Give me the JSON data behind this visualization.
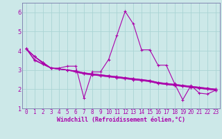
{
  "xlabel": "Windchill (Refroidissement éolien,°C)",
  "background_color": "#cce8e8",
  "grid_color": "#aad4d4",
  "line_color": "#aa00aa",
  "xlim": [
    -0.5,
    23.5
  ],
  "ylim": [
    1,
    6.5
  ],
  "yticks": [
    1,
    2,
    3,
    4,
    5,
    6
  ],
  "xticks": [
    0,
    1,
    2,
    3,
    4,
    5,
    6,
    7,
    8,
    9,
    10,
    11,
    12,
    13,
    14,
    15,
    16,
    17,
    18,
    19,
    20,
    21,
    22,
    23
  ],
  "series": [
    [
      4.1,
      3.7,
      3.4,
      3.1,
      3.1,
      3.2,
      3.2,
      1.55,
      2.9,
      2.9,
      3.55,
      4.8,
      6.05,
      5.4,
      4.05,
      4.05,
      3.25,
      3.25,
      2.3,
      1.45,
      2.2,
      1.8,
      1.75,
      1.95
    ],
    [
      4.1,
      3.7,
      3.4,
      3.1,
      3.05,
      3.0,
      2.95,
      2.85,
      2.8,
      2.75,
      2.7,
      2.65,
      2.6,
      2.55,
      2.5,
      2.45,
      2.35,
      2.3,
      2.25,
      2.2,
      2.15,
      2.1,
      2.05,
      2.0
    ],
    [
      4.1,
      3.7,
      3.35,
      3.1,
      3.05,
      3.0,
      2.95,
      2.85,
      2.8,
      2.75,
      2.7,
      2.65,
      2.6,
      2.55,
      2.5,
      2.45,
      2.35,
      2.3,
      2.25,
      2.2,
      2.15,
      2.1,
      2.05,
      2.0
    ],
    [
      4.1,
      3.5,
      3.3,
      3.1,
      3.05,
      3.0,
      2.9,
      2.8,
      2.75,
      2.7,
      2.65,
      2.6,
      2.55,
      2.5,
      2.45,
      2.4,
      2.3,
      2.25,
      2.2,
      2.15,
      2.1,
      2.05,
      2.0,
      1.95
    ],
    [
      4.1,
      3.55,
      3.3,
      3.1,
      3.05,
      3.0,
      2.9,
      2.8,
      2.75,
      2.7,
      2.65,
      2.6,
      2.55,
      2.5,
      2.45,
      2.4,
      2.3,
      2.25,
      2.2,
      2.15,
      2.1,
      2.05,
      2.0,
      1.95
    ]
  ],
  "marker": "+",
  "markersize": 3,
  "linewidth": 0.8,
  "tick_fontsize": 5.5,
  "xlabel_fontsize": 6.0,
  "spine_color": "#7777aa"
}
